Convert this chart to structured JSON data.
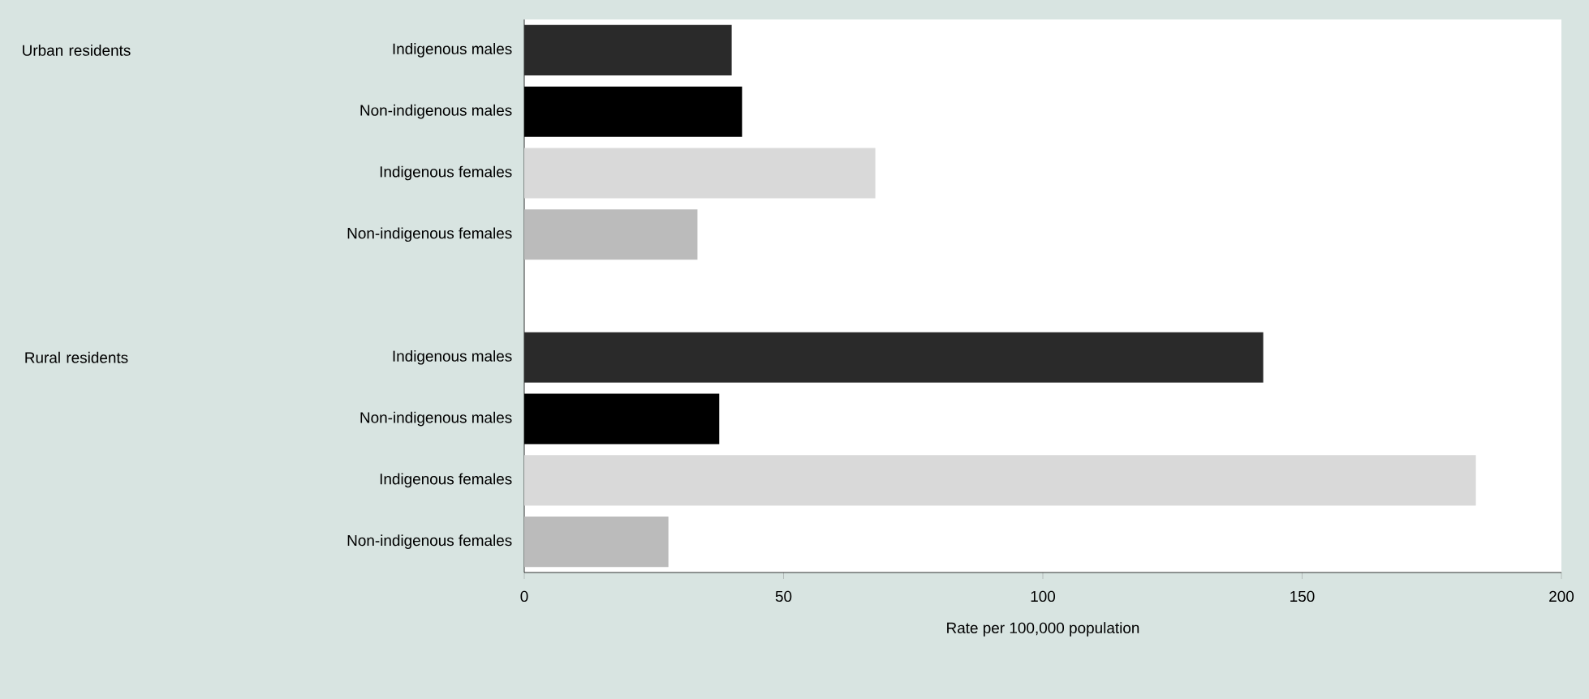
{
  "chart_data": {
    "type": "bar",
    "orientation": "horizontal",
    "categories": [
      "Indigenous males",
      "Non-indigenous males",
      "Indigenous females",
      "Non-indigenous females",
      null,
      "Indigenous males",
      "Non-indigenous males",
      "Indigenous females",
      "Non-indigenous females"
    ],
    "values": [
      40,
      42,
      67.7,
      33.4,
      null,
      142.5,
      37.6,
      183.5,
      27.8
    ],
    "colors": [
      "#2a2a2a",
      "#000000",
      "#d9d9d9",
      "#bbbbbb",
      null,
      "#2a2a2a",
      "#000000",
      "#d9d9d9",
      "#bbbbbb"
    ],
    "xlim": [
      0,
      200
    ],
    "xticks": [
      0,
      50,
      100,
      150,
      200
    ],
    "xlabel": "Rate per 100,000 population",
    "annotations": [
      "Urban residents",
      "Rural residents"
    ]
  }
}
